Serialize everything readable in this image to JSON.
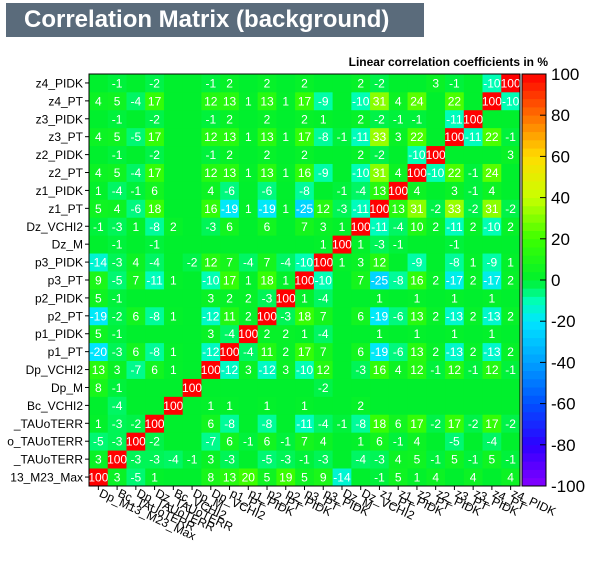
{
  "chart_data": {
    "type": "heatmap",
    "title": "Correlation Matrix (background)",
    "subtitle": "Linear correlation coefficients in %",
    "variables": [
      "Dp_M13_M23_Max",
      "Bc_TAUoTERR",
      "Dp_TAUoTERR",
      "Dz_TAUoTERR",
      "Bc_VCHI2",
      "Dp_M",
      "Dp_VCHI2",
      "p1_PT",
      "p1_PIDK",
      "p2_PT",
      "p2_PIDK",
      "p3_PT",
      "p3_PIDK",
      "Dz_M",
      "Dz_VCHI2",
      "z1_PT",
      "z1_PIDK",
      "z2_PT",
      "z2_PIDK",
      "z3_PT",
      "z3_PIDK",
      "z4_PT",
      "z4_PIDK"
    ],
    "y_labels": [
      "13_M23_Max",
      "_TAUoTERR",
      "o_TAUoTERR",
      "_TAUoTERR",
      "Bc_VCHI2",
      "Dp_M",
      "Dp_VCHI2",
      "p1_PT",
      "p1_PIDK",
      "p2_PT",
      "p2_PIDK",
      "p3_PT",
      "p3_PIDK",
      "Dz_M",
      "Dz_VCHI2",
      "z1_PT",
      "z1_PIDK",
      "z2_PT",
      "z2_PIDK",
      "z3_PT",
      "z3_PIDK",
      "z4_PT",
      "z4_PIDK"
    ],
    "x_labels": [
      "Dp_M13_M23_Max",
      "Bc_TAUoTERR",
      "Dp_TAUoTERR",
      "Dz_TAUoTERR",
      "Bc_VCHI2",
      "Dp_M",
      "Dp_VCHI2",
      "p1_PT",
      "p1_PIDK",
      "p2_PT",
      "p2_PIDK",
      "p3_PT",
      "p3_PIDK",
      "Dz_M",
      "Dz_VCHI2",
      "z1_PT",
      "z1_PIDK",
      "z2_PT",
      "z2_PIDK",
      "z3_PT",
      "z3_PIDK",
      "z4_PT",
      "z4_PIDK"
    ],
    "values": [
      [
        100,
        3,
        -5,
        1,
        0,
        0,
        8,
        13,
        20,
        5,
        19,
        5,
        9,
        -14,
        0,
        -1,
        5,
        1,
        4,
        0,
        4,
        0,
        4
      ],
      [
        3,
        100,
        -3,
        -3,
        -4,
        -1,
        3,
        -3,
        0,
        -5,
        -3,
        -1,
        -3,
        0,
        -4,
        -3,
        4,
        5,
        -1,
        5,
        -1,
        5,
        -1
      ],
      [
        -5,
        -3,
        100,
        -2,
        0,
        0,
        -7,
        6,
        -1,
        6,
        -1,
        7,
        4,
        0,
        1,
        6,
        -1,
        4,
        0,
        -5,
        0,
        -4,
        0
      ],
      [
        1,
        -3,
        -2,
        100,
        0,
        0,
        6,
        -8,
        0,
        -8,
        0,
        -11,
        -4,
        -1,
        -8,
        18,
        6,
        17,
        -2,
        17,
        -2,
        17,
        -2
      ],
      [
        0,
        -4,
        0,
        0,
        100,
        0,
        1,
        1,
        0,
        1,
        0,
        1,
        0,
        0,
        2,
        0,
        0,
        0,
        0,
        0,
        0,
        0,
        0
      ],
      [
        8,
        -1,
        0,
        0,
        0,
        100,
        0,
        0,
        0,
        0,
        0,
        0,
        -2,
        0,
        0,
        0,
        0,
        0,
        0,
        0,
        0,
        0,
        0
      ],
      [
        13,
        3,
        -7,
        6,
        1,
        0,
        100,
        -12,
        3,
        -12,
        3,
        -10,
        12,
        0,
        -3,
        16,
        4,
        12,
        -1,
        12,
        -1,
        12,
        -1
      ],
      [
        -20,
        -3,
        6,
        -8,
        1,
        0,
        -12,
        100,
        -4,
        11,
        2,
        17,
        7,
        0,
        6,
        -19,
        -6,
        13,
        2,
        -13,
        2,
        -13,
        2
      ],
      [
        5,
        -1,
        0,
        0,
        0,
        0,
        3,
        -4,
        100,
        2,
        2,
        1,
        -4,
        0,
        0,
        1,
        0,
        1,
        0,
        1,
        0,
        1,
        0
      ],
      [
        -19,
        -2,
        6,
        -8,
        1,
        0,
        -12,
        11,
        2,
        100,
        -3,
        18,
        7,
        0,
        6,
        -19,
        -6,
        13,
        2,
        -13,
        2,
        -13,
        2
      ],
      [
        5,
        -1,
        0,
        0,
        0,
        0,
        3,
        2,
        2,
        -3,
        100,
        1,
        -4,
        0,
        0,
        1,
        0,
        1,
        0,
        1,
        0,
        1,
        0
      ],
      [
        9,
        -5,
        7,
        -11,
        1,
        0,
        -10,
        17,
        1,
        18,
        1,
        100,
        -10,
        0,
        7,
        -25,
        -8,
        16,
        2,
        -17,
        2,
        -17,
        2
      ],
      [
        -14,
        -3,
        4,
        -4,
        0,
        -2,
        12,
        7,
        -4,
        7,
        -4,
        -10,
        100,
        1,
        3,
        12,
        0,
        -9,
        0,
        -8,
        1,
        -9,
        1
      ],
      [
        0,
        -1,
        0,
        -1,
        0,
        0,
        0,
        0,
        0,
        0,
        0,
        0,
        1,
        100,
        1,
        -3,
        -1,
        0,
        0,
        -1,
        0,
        0,
        0
      ],
      [
        -1,
        -3,
        1,
        -8,
        2,
        0,
        -3,
        6,
        0,
        6,
        0,
        7,
        3,
        1,
        100,
        -11,
        -4,
        10,
        2,
        -11,
        2,
        -10,
        2
      ],
      [
        5,
        4,
        -6,
        18,
        0,
        0,
        16,
        -19,
        1,
        -19,
        1,
        -25,
        12,
        -3,
        -11,
        100,
        13,
        31,
        -2,
        33,
        -2,
        31,
        -2
      ],
      [
        1,
        -4,
        -1,
        6,
        0,
        0,
        4,
        -6,
        0,
        -6,
        0,
        -8,
        0,
        -1,
        -4,
        13,
        100,
        4,
        0,
        3,
        -1,
        4,
        0
      ],
      [
        4,
        5,
        -4,
        17,
        0,
        0,
        12,
        13,
        1,
        13,
        1,
        16,
        -9,
        0,
        -10,
        31,
        4,
        100,
        -10,
        22,
        -1,
        24,
        0
      ],
      [
        0,
        -1,
        0,
        -2,
        0,
        0,
        -1,
        2,
        0,
        2,
        0,
        2,
        0,
        0,
        2,
        -2,
        0,
        -10,
        100,
        0,
        0,
        0,
        3
      ],
      [
        4,
        5,
        -5,
        17,
        0,
        0,
        12,
        13,
        1,
        13,
        1,
        17,
        -8,
        -1,
        -11,
        33,
        3,
        22,
        0,
        100,
        -11,
        22,
        -1
      ],
      [
        0,
        -1,
        0,
        -2,
        0,
        0,
        -1,
        2,
        0,
        2,
        0,
        2,
        1,
        0,
        2,
        -2,
        -1,
        -1,
        0,
        -11,
        100,
        0,
        0
      ],
      [
        4,
        5,
        -4,
        17,
        0,
        0,
        12,
        13,
        1,
        13,
        1,
        17,
        -9,
        0,
        -10,
        31,
        4,
        24,
        0,
        22,
        0,
        100,
        -10
      ],
      [
        0,
        -1,
        0,
        -2,
        0,
        0,
        -1,
        2,
        0,
        2,
        0,
        2,
        0,
        0,
        2,
        -2,
        0,
        0,
        3,
        -1,
        0,
        -10,
        100
      ]
    ],
    "color_scale": {
      "min": -100,
      "max": 100,
      "ticks": [
        100,
        80,
        60,
        40,
        20,
        0,
        -20,
        -40,
        -60,
        -80,
        -100
      ]
    },
    "grid": false
  }
}
